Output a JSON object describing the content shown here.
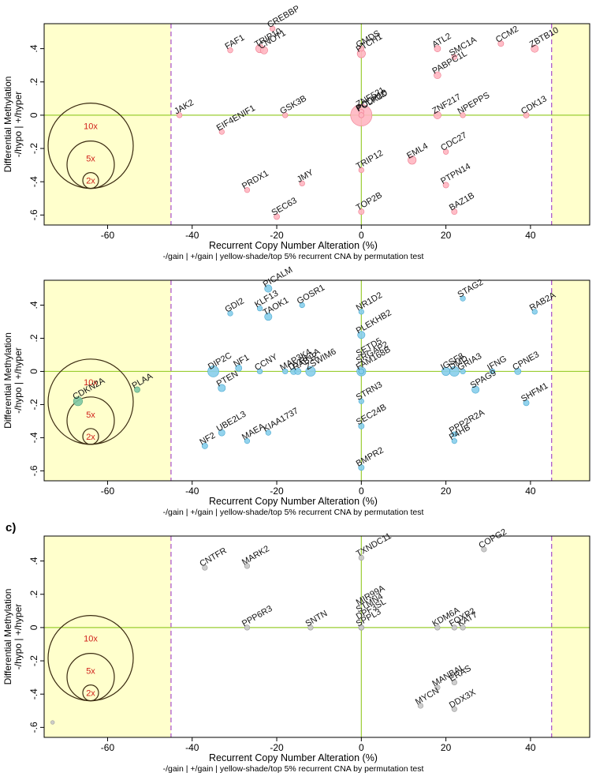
{
  "figure_label_c": "c)",
  "chart_data": [
    {
      "type": "scatter",
      "id": "panel-a",
      "xlabel": "Recurrent Copy Number Alteration (%)",
      "ylabel_line1": "Differential Methylation",
      "ylabel_line2": "-/hypo | +/hyper",
      "caption": "-/gain | +/gain | yellow-shade/top 5% recurrent CNA by permutation test",
      "xlim": [
        -75,
        54
      ],
      "ylim": [
        -0.66,
        0.55
      ],
      "xticks": [
        -60,
        -40,
        -20,
        0,
        20,
        40
      ],
      "yticks": [
        -0.6,
        -0.4,
        -0.2,
        0,
        0.2,
        0.4
      ],
      "shade_threshold": 45,
      "point_color": "#ffb6c1",
      "point_stroke": "#ee7a8e",
      "legend_labels": [
        "10x",
        "5x",
        "2x"
      ],
      "legend_multipliers": [
        10,
        5,
        2
      ],
      "points": [
        {
          "gene": "CREBBP",
          "x": -21,
          "y": 0.52,
          "size": 1
        },
        {
          "gene": "FAF1",
          "x": -31,
          "y": 0.39,
          "size": 1
        },
        {
          "gene": "TRIP10",
          "x": -24,
          "y": 0.4,
          "size": 2.5
        },
        {
          "gene": "CNOT1",
          "x": -23,
          "y": 0.39,
          "size": 2
        },
        {
          "gene": "GMDS",
          "x": 0,
          "y": 0.4,
          "size": 1
        },
        {
          "gene": "PTCH1",
          "x": 0,
          "y": 0.37,
          "size": 2.5
        },
        {
          "gene": "ATL2",
          "x": 18,
          "y": 0.4,
          "size": 1.5
        },
        {
          "gene": "CCM2",
          "x": 33,
          "y": 0.43,
          "size": 1.2
        },
        {
          "gene": "ZBTB10",
          "x": 41,
          "y": 0.4,
          "size": 2
        },
        {
          "gene": "SMC1A",
          "x": 22,
          "y": 0.35,
          "size": 1
        },
        {
          "gene": "PABPC1L",
          "x": 18,
          "y": 0.24,
          "size": 1.8
        },
        {
          "gene": "JAK2",
          "x": -43,
          "y": 0.0,
          "size": 1
        },
        {
          "gene": "GSK3B",
          "x": -18,
          "y": 0.0,
          "size": 1
        },
        {
          "gene": "POLR2D",
          "x": 0,
          "y": 0.0,
          "size": 17
        },
        {
          "gene": "PCDH10",
          "x": 0,
          "y": 0.02,
          "size": 1
        },
        {
          "gene": "ZNF521",
          "x": 0,
          "y": 0.0,
          "size": 1
        },
        {
          "gene": "ZNF217",
          "x": 18,
          "y": 0.0,
          "size": 2
        },
        {
          "gene": "NPEPPS",
          "x": 24,
          "y": 0.0,
          "size": 1
        },
        {
          "gene": "CDK13",
          "x": 39,
          "y": 0.0,
          "size": 1.2
        },
        {
          "gene": "EIF4ENIF1",
          "x": -33,
          "y": -0.1,
          "size": 1
        },
        {
          "gene": "CDC27",
          "x": 20,
          "y": -0.22,
          "size": 1
        },
        {
          "gene": "EML4",
          "x": 12,
          "y": -0.27,
          "size": 2.5
        },
        {
          "gene": "TRIP12",
          "x": 0,
          "y": -0.33,
          "size": 1
        },
        {
          "gene": "PRDX1",
          "x": -27,
          "y": -0.45,
          "size": 1
        },
        {
          "gene": "JMY",
          "x": -14,
          "y": -0.41,
          "size": 1
        },
        {
          "gene": "PTPN14",
          "x": 20,
          "y": -0.42,
          "size": 1.2
        },
        {
          "gene": "SEC63",
          "x": -20,
          "y": -0.61,
          "size": 1.2
        },
        {
          "gene": "TOP2B",
          "x": 0,
          "y": -0.58,
          "size": 1.2
        },
        {
          "gene": "BAZ1B",
          "x": 22,
          "y": -0.58,
          "size": 1.2
        }
      ]
    },
    {
      "type": "scatter",
      "id": "panel-b",
      "xlabel": "Recurrent Copy Number Alteration (%)",
      "ylabel_line1": "Differential Methylation",
      "ylabel_line2": "-/hypo | +/hyper",
      "caption": "-/gain | +/gain | yellow-shade/top 5% recurrent CNA by permutation test",
      "xlim": [
        -75,
        54
      ],
      "ylim": [
        -0.66,
        0.55
      ],
      "xticks": [
        -60,
        -40,
        -20,
        0,
        20,
        40
      ],
      "yticks": [
        -0.6,
        -0.4,
        -0.2,
        0,
        0.2,
        0.4
      ],
      "shade_threshold": 45,
      "point_color": "#87ceeb",
      "point_stroke": "#4aa8d0",
      "legend_labels": [
        "10x",
        "5x",
        "2x"
      ],
      "legend_multipliers": [
        10,
        5,
        2
      ],
      "points": [
        {
          "gene": "PICALM",
          "x": -22,
          "y": 0.5,
          "size": 2
        },
        {
          "gene": "GDI2",
          "x": -31,
          "y": 0.35,
          "size": 1
        },
        {
          "gene": "KLF13",
          "x": -24,
          "y": 0.38,
          "size": 1
        },
        {
          "gene": "TAOK1",
          "x": -22,
          "y": 0.33,
          "size": 2
        },
        {
          "gene": "GOSR1",
          "x": -14,
          "y": 0.4,
          "size": 1
        },
        {
          "gene": "NR1D2",
          "x": 0,
          "y": 0.36,
          "size": 1
        },
        {
          "gene": "STAG2",
          "x": 24,
          "y": 0.44,
          "size": 1
        },
        {
          "gene": "RAB2A",
          "x": 41,
          "y": 0.36,
          "size": 1
        },
        {
          "gene": "PLEKHB2",
          "x": 0,
          "y": 0.22,
          "size": 2
        },
        {
          "gene": "DIP2C",
          "x": -35,
          "y": 0.0,
          "size": 4.5
        },
        {
          "gene": "NF1",
          "x": -29,
          "y": 0.02,
          "size": 1.5
        },
        {
          "gene": "CCNY",
          "x": -24,
          "y": 0.0,
          "size": 1
        },
        {
          "gene": "MAP3K4",
          "x": -18,
          "y": 0.0,
          "size": 1
        },
        {
          "gene": "DYRK1A",
          "x": -16,
          "y": 0.0,
          "size": 1.5
        },
        {
          "gene": "RAB12",
          "x": -15,
          "y": 0.0,
          "size": 1.5
        },
        {
          "gene": "ZSWIM6",
          "x": -12,
          "y": 0.0,
          "size": 3.5
        },
        {
          "gene": "FAM168B",
          "x": 0,
          "y": 0.0,
          "size": 3
        },
        {
          "gene": "SRGAP2",
          "x": 0,
          "y": 0.0,
          "size": 1
        },
        {
          "gene": "SETD5",
          "x": 0,
          "y": 0.0,
          "size": 1
        },
        {
          "gene": "IGSF8",
          "x": 20,
          "y": 0.0,
          "size": 2.5
        },
        {
          "gene": "DMD",
          "x": 22,
          "y": 0.0,
          "size": 3.5
        },
        {
          "gene": "GRIA3",
          "x": 24,
          "y": 0.0,
          "size": 1
        },
        {
          "gene": "IFNG",
          "x": 31,
          "y": 0.0,
          "size": 1
        },
        {
          "gene": "CPNE3",
          "x": 37,
          "y": 0.0,
          "size": 1.5
        },
        {
          "gene": "PTEN",
          "x": -33,
          "y": -0.1,
          "size": 2
        },
        {
          "gene": "SPAG9",
          "x": 27,
          "y": -0.11,
          "size": 2
        },
        {
          "gene": "SHFM1",
          "x": 39,
          "y": -0.19,
          "size": 1.2
        },
        {
          "gene": "CDKN2A",
          "x": -67,
          "y": -0.18,
          "size": 3,
          "color": "#7ec8a4",
          "stroke": "#4fa07a"
        },
        {
          "gene": "PLAA",
          "x": -53,
          "y": -0.11,
          "size": 1.2,
          "color": "#7ec8a4",
          "stroke": "#4fa07a"
        },
        {
          "gene": "STRN3",
          "x": 0,
          "y": -0.18,
          "size": 1
        },
        {
          "gene": "UBE2L3",
          "x": -33,
          "y": -0.37,
          "size": 1.5
        },
        {
          "gene": "NF2",
          "x": -37,
          "y": -0.45,
          "size": 1.2
        },
        {
          "gene": "KIAA1737",
          "x": -22,
          "y": -0.37,
          "size": 1
        },
        {
          "gene": "MAEA",
          "x": -27,
          "y": -0.42,
          "size": 1
        },
        {
          "gene": "SEC24B",
          "x": 0,
          "y": -0.33,
          "size": 1.2
        },
        {
          "gene": "PPP2R2A",
          "x": 22,
          "y": -0.38,
          "size": 1
        },
        {
          "gene": "P4HB",
          "x": 22,
          "y": -0.42,
          "size": 1
        },
        {
          "gene": "BMPR2",
          "x": 0,
          "y": -0.58,
          "size": 1.2
        }
      ]
    },
    {
      "type": "scatter",
      "id": "panel-c",
      "xlabel": "Recurrent Copy Number Alteration (%)",
      "ylabel_line1": "Differential Methylation",
      "ylabel_line2": "-/hypo | +/hyper",
      "caption": "-/gain | +/gain | yellow-shade/top 5% recurrent CNA by permutation test",
      "xlim": [
        -75,
        54
      ],
      "ylim": [
        -0.66,
        0.55
      ],
      "xticks": [
        -60,
        -40,
        -20,
        0,
        20,
        40
      ],
      "yticks": [
        -0.6,
        -0.4,
        -0.2,
        0,
        0.2,
        0.4
      ],
      "shade_threshold": 45,
      "point_color": "#c8c8c8",
      "point_stroke": "#9a9a9a",
      "legend_labels": [
        "10x",
        "5x",
        "2x"
      ],
      "legend_multipliers": [
        10,
        5,
        2
      ],
      "points": [
        {
          "gene": "CNTFR",
          "x": -37,
          "y": 0.36,
          "size": 1
        },
        {
          "gene": "MARK2",
          "x": -27,
          "y": 0.37,
          "size": 1
        },
        {
          "gene": "TXNDC11",
          "x": 0,
          "y": 0.42,
          "size": 1
        },
        {
          "gene": "COPG2",
          "x": 29,
          "y": 0.47,
          "size": 1
        },
        {
          "gene": "PPP6R3",
          "x": -27,
          "y": 0.0,
          "size": 1
        },
        {
          "gene": "SNTN",
          "x": -12,
          "y": 0.0,
          "size": 1
        },
        {
          "gene": "SPPL3",
          "x": 0,
          "y": 0.0,
          "size": 1
        },
        {
          "gene": "DPF3SL",
          "x": 0,
          "y": 0.0,
          "size": 1
        },
        {
          "gene": "STMN4",
          "x": 0,
          "y": 0.0,
          "size": 1
        },
        {
          "gene": "MIR99A",
          "x": 0,
          "y": 0.0,
          "size": 1
        },
        {
          "gene": "KDM6A",
          "x": 18,
          "y": 0.0,
          "size": 1
        },
        {
          "gene": "FOXP2",
          "x": 22,
          "y": 0.0,
          "size": 1
        },
        {
          "gene": "KAT7",
          "x": 24,
          "y": 0.0,
          "size": 1
        },
        {
          "gene": "MANBAL",
          "x": 18,
          "y": -0.36,
          "size": 1
        },
        {
          "gene": "ERAS",
          "x": 22,
          "y": -0.33,
          "size": 1
        },
        {
          "gene": "MYCN",
          "x": 14,
          "y": -0.47,
          "size": 1
        },
        {
          "gene": "DDX3X",
          "x": 22,
          "y": -0.49,
          "size": 1
        },
        {
          "gene": "",
          "x": -73,
          "y": -0.57,
          "size": 0.5
        }
      ]
    }
  ]
}
